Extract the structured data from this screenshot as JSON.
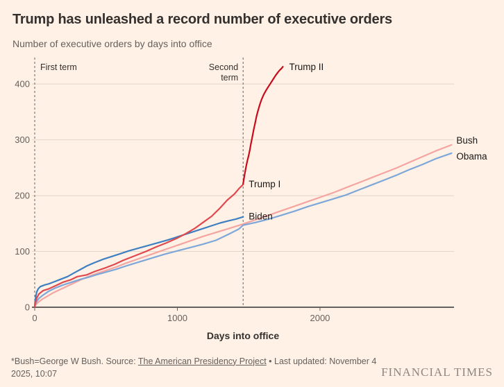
{
  "chart_data": {
    "type": "line",
    "title": "Trump has unleashed a record number of executive orders",
    "subtitle": "Number of executive orders by days into office",
    "xlabel": "Days into office",
    "ylabel": "",
    "xlim": [
      0,
      2920
    ],
    "ylim": [
      0,
      440
    ],
    "yticks": [
      0,
      100,
      200,
      300,
      400
    ],
    "xticks": [
      0,
      1000,
      2000
    ],
    "grid": "horizontal",
    "legend": "end-of-line-labels",
    "colors": {
      "background": "#fff1e5",
      "gridline": "#e2d6c8",
      "axis": "#33302e",
      "tick_text": "#66605c",
      "annotation_line": "#66605c",
      "label_text": "#1a1817"
    },
    "annotations": [
      {
        "label_lines": [
          "First term"
        ],
        "x": 0,
        "align": "start"
      },
      {
        "label_lines": [
          "Second",
          "term"
        ],
        "x": 1461,
        "align": "end"
      }
    ],
    "series": [
      {
        "name": "Bush",
        "label": "Bush",
        "color": "#f4a5a1",
        "label_dx": 7,
        "label_dy": -2,
        "points": [
          [
            0,
            2
          ],
          [
            20,
            8
          ],
          [
            50,
            14
          ],
          [
            90,
            20
          ],
          [
            130,
            26
          ],
          [
            180,
            32
          ],
          [
            230,
            38
          ],
          [
            280,
            44
          ],
          [
            330,
            50
          ],
          [
            365,
            54
          ],
          [
            430,
            60
          ],
          [
            500,
            66
          ],
          [
            570,
            72
          ],
          [
            640,
            79
          ],
          [
            730,
            87
          ],
          [
            820,
            95
          ],
          [
            910,
            103
          ],
          [
            1000,
            111
          ],
          [
            1090,
            119
          ],
          [
            1180,
            127
          ],
          [
            1270,
            134
          ],
          [
            1360,
            141
          ],
          [
            1461,
            149
          ],
          [
            1550,
            157
          ],
          [
            1640,
            165
          ],
          [
            1730,
            173
          ],
          [
            1820,
            181
          ],
          [
            1910,
            189
          ],
          [
            2000,
            197
          ],
          [
            2090,
            205
          ],
          [
            2180,
            214
          ],
          [
            2270,
            223
          ],
          [
            2360,
            232
          ],
          [
            2450,
            241
          ],
          [
            2540,
            250
          ],
          [
            2630,
            260
          ],
          [
            2720,
            270
          ],
          [
            2810,
            280
          ],
          [
            2922,
            291
          ]
        ]
      },
      {
        "name": "Obama",
        "label": "Obama",
        "color": "#7da7d8",
        "label_dx": 7,
        "label_dy": 9,
        "points": [
          [
            0,
            2
          ],
          [
            10,
            9
          ],
          [
            30,
            16
          ],
          [
            60,
            22
          ],
          [
            100,
            29
          ],
          [
            150,
            35
          ],
          [
            200,
            40
          ],
          [
            260,
            45
          ],
          [
            320,
            50
          ],
          [
            365,
            53
          ],
          [
            430,
            58
          ],
          [
            500,
            63
          ],
          [
            570,
            68
          ],
          [
            640,
            74
          ],
          [
            730,
            81
          ],
          [
            820,
            88
          ],
          [
            910,
            95
          ],
          [
            1000,
            101
          ],
          [
            1090,
            107
          ],
          [
            1180,
            113
          ],
          [
            1270,
            120
          ],
          [
            1360,
            131
          ],
          [
            1430,
            140
          ],
          [
            1461,
            147
          ],
          [
            1550,
            152
          ],
          [
            1640,
            158
          ],
          [
            1730,
            165
          ],
          [
            1820,
            172
          ],
          [
            1910,
            180
          ],
          [
            2000,
            187
          ],
          [
            2090,
            194
          ],
          [
            2180,
            201
          ],
          [
            2270,
            210
          ],
          [
            2360,
            219
          ],
          [
            2450,
            228
          ],
          [
            2540,
            237
          ],
          [
            2630,
            247
          ],
          [
            2720,
            256
          ],
          [
            2810,
            266
          ],
          [
            2922,
            276
          ]
        ]
      },
      {
        "name": "Biden",
        "label": "Biden",
        "color": "#3e7fc1",
        "label_dx": 8,
        "label_dy": 4,
        "points": [
          [
            0,
            2
          ],
          [
            3,
            11
          ],
          [
            8,
            20
          ],
          [
            15,
            28
          ],
          [
            25,
            33
          ],
          [
            40,
            37
          ],
          [
            70,
            40
          ],
          [
            100,
            42
          ],
          [
            140,
            46
          ],
          [
            180,
            50
          ],
          [
            230,
            55
          ],
          [
            280,
            62
          ],
          [
            330,
            69
          ],
          [
            365,
            74
          ],
          [
            420,
            80
          ],
          [
            480,
            86
          ],
          [
            540,
            91
          ],
          [
            600,
            96
          ],
          [
            660,
            101
          ],
          [
            730,
            106
          ],
          [
            800,
            111
          ],
          [
            870,
            116
          ],
          [
            940,
            121
          ],
          [
            1000,
            126
          ],
          [
            1060,
            131
          ],
          [
            1120,
            136
          ],
          [
            1180,
            141
          ],
          [
            1240,
            146
          ],
          [
            1300,
            151
          ],
          [
            1360,
            155
          ],
          [
            1410,
            158
          ],
          [
            1461,
            162
          ]
        ]
      },
      {
        "name": "Trump I",
        "label": "Trump I",
        "color": "#e0484e",
        "label_dx": 8,
        "label_dy": 4,
        "points": [
          [
            0,
            1
          ],
          [
            5,
            8
          ],
          [
            15,
            17
          ],
          [
            30,
            24
          ],
          [
            60,
            30
          ],
          [
            100,
            33
          ],
          [
            150,
            39
          ],
          [
            200,
            45
          ],
          [
            250,
            49
          ],
          [
            300,
            55
          ],
          [
            365,
            58
          ],
          [
            420,
            64
          ],
          [
            500,
            71
          ],
          [
            560,
            77
          ],
          [
            620,
            84
          ],
          [
            700,
            92
          ],
          [
            780,
            100
          ],
          [
            850,
            108
          ],
          [
            920,
            115
          ],
          [
            1000,
            124
          ],
          [
            1060,
            132
          ],
          [
            1120,
            141
          ],
          [
            1180,
            152
          ],
          [
            1240,
            163
          ],
          [
            1300,
            178
          ],
          [
            1350,
            192
          ],
          [
            1400,
            203
          ],
          [
            1430,
            212
          ],
          [
            1461,
            220
          ]
        ]
      },
      {
        "name": "Trump II",
        "label": "Trump II",
        "color": "#c60c1c",
        "label_dx": 9,
        "label_dy": 5,
        "points": [
          [
            1461,
            221
          ],
          [
            1468,
            232
          ],
          [
            1475,
            243
          ],
          [
            1482,
            252
          ],
          [
            1490,
            262
          ],
          [
            1500,
            272
          ],
          [
            1508,
            282
          ],
          [
            1515,
            292
          ],
          [
            1525,
            305
          ],
          [
            1535,
            318
          ],
          [
            1545,
            330
          ],
          [
            1555,
            342
          ],
          [
            1565,
            352
          ],
          [
            1578,
            363
          ],
          [
            1590,
            372
          ],
          [
            1605,
            381
          ],
          [
            1618,
            387
          ],
          [
            1630,
            392
          ],
          [
            1645,
            398
          ],
          [
            1660,
            404
          ],
          [
            1675,
            410
          ],
          [
            1690,
            416
          ],
          [
            1705,
            421
          ],
          [
            1718,
            425
          ],
          [
            1730,
            428
          ],
          [
            1740,
            431
          ]
        ]
      }
    ]
  },
  "footer": {
    "note_prefix": "*Bush=George W Bush. Source: ",
    "link_text": "The American Presidency Project",
    "note_suffix": " • Last updated: November 4 2025, 10:07",
    "logo": "FINANCIAL TIMES"
  }
}
